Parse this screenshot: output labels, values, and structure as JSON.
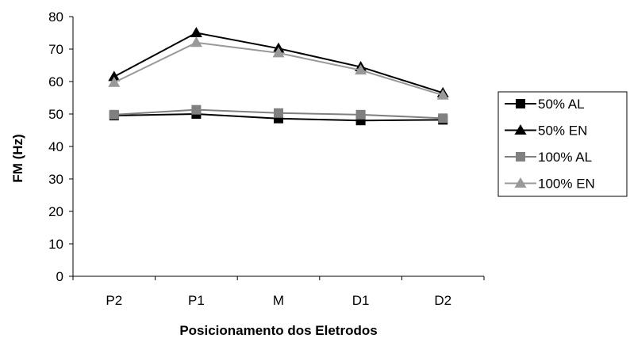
{
  "chart_data": {
    "type": "line",
    "categories": [
      "P2",
      "P1",
      "M",
      "D1",
      "D2"
    ],
    "xlabel": "Posicionamento dos Eletrodos",
    "ylabel": "FM (Hz)",
    "ylim": [
      0,
      80
    ],
    "yticks": [
      0,
      10,
      20,
      30,
      40,
      50,
      60,
      70,
      80
    ],
    "grid": false,
    "legend_position": "right",
    "series": [
      {
        "name": "50% AL",
        "values": [
          49.5,
          50.0,
          48.6,
          48.0,
          48.2
        ],
        "color": "#000000",
        "marker": "square"
      },
      {
        "name": "50% EN",
        "values": [
          61.5,
          75.0,
          70.2,
          64.5,
          56.5
        ],
        "color": "#000000",
        "marker": "triangle"
      },
      {
        "name": "100% AL",
        "values": [
          49.8,
          51.3,
          50.3,
          49.8,
          48.7
        ],
        "color": "#808080",
        "marker": "square"
      },
      {
        "name": "100% EN",
        "values": [
          59.7,
          72.0,
          68.8,
          63.5,
          55.8
        ],
        "color": "#999999",
        "marker": "triangle"
      }
    ]
  }
}
